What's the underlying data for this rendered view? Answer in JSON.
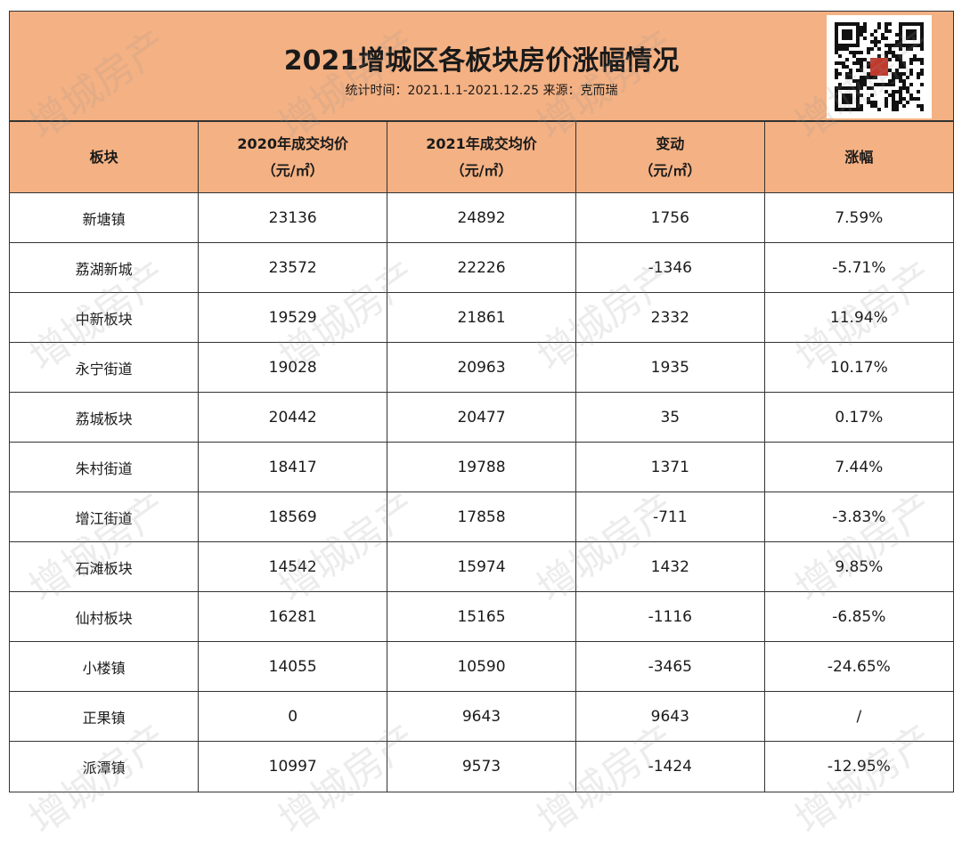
{
  "title": "2021增城区各板块房价涨幅情况",
  "subtitle": "统计时间：2021.1.1-2021.12.25  来源：克而瑞",
  "watermark": "增城房产",
  "colors": {
    "header_bg": "#f4b183",
    "border": "#333333"
  },
  "headers": [
    {
      "line1": "板块",
      "line2": ""
    },
    {
      "line1": "2020年成交均价",
      "line2": "（元/㎡）"
    },
    {
      "line1": "2021年成交均价",
      "line2": "（元/㎡）"
    },
    {
      "line1": "变动",
      "line2": "（元/㎡）"
    },
    {
      "line1": "涨幅",
      "line2": ""
    }
  ],
  "rows": [
    [
      "新塘镇",
      "23136",
      "24892",
      "1756",
      "7.59%"
    ],
    [
      "荔湖新城",
      "23572",
      "22226",
      "-1346",
      "-5.71%"
    ],
    [
      "中新板块",
      "19529",
      "21861",
      "2332",
      "11.94%"
    ],
    [
      "永宁街道",
      "19028",
      "20963",
      "1935",
      "10.17%"
    ],
    [
      "荔城板块",
      "20442",
      "20477",
      "35",
      "0.17%"
    ],
    [
      "朱村街道",
      "18417",
      "19788",
      "1371",
      "7.44%"
    ],
    [
      "增江街道",
      "18569",
      "17858",
      "-711",
      "-3.83%"
    ],
    [
      "石滩板块",
      "14542",
      "15974",
      "1432",
      "9.85%"
    ],
    [
      "仙村板块",
      "16281",
      "15165",
      "-1116",
      "-6.85%"
    ],
    [
      "小楼镇",
      "14055",
      "10590",
      "-3465",
      "-24.65%"
    ],
    [
      "正果镇",
      "0",
      "9643",
      "9643",
      "/"
    ],
    [
      "派潭镇",
      "10997",
      "9573",
      "-1424",
      "-12.95%"
    ]
  ]
}
